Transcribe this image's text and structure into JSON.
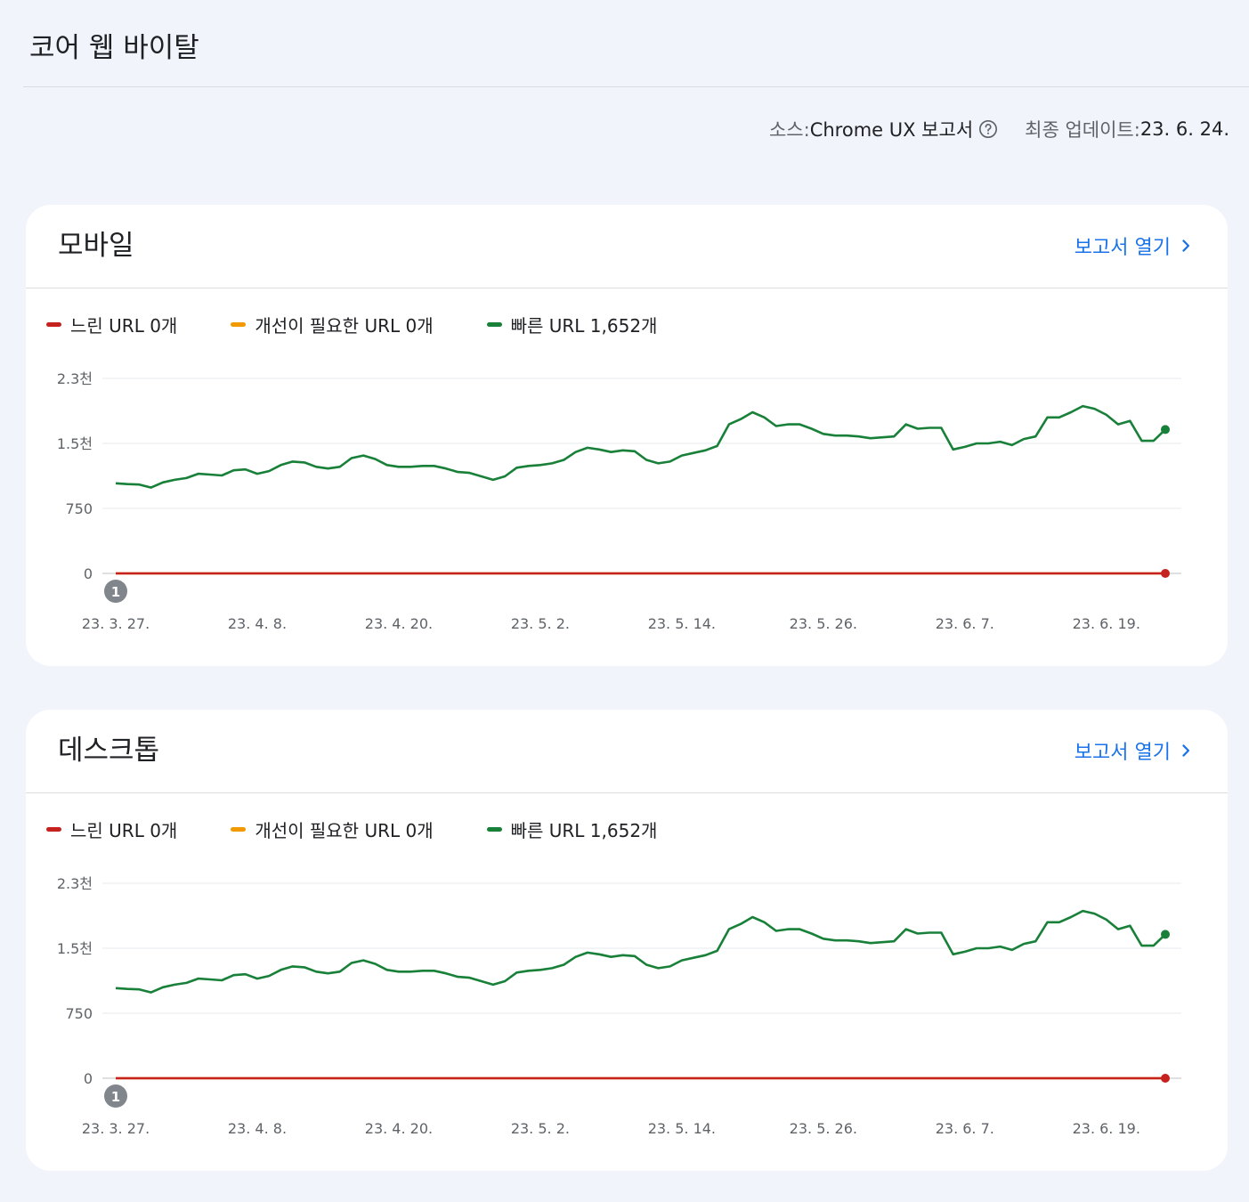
{
  "page": {
    "title": "코어 웹 바이탈",
    "source_label": "소스: ",
    "source_value": "Chrome UX 보고서",
    "updated_label": "최종 업데이트: ",
    "updated_value": "23. 6. 24."
  },
  "colors": {
    "slow": "#c5221f",
    "needs_improvement": "#f29900",
    "fast": "#188038",
    "link": "#1a73e8"
  },
  "cards": [
    {
      "title": "모바일",
      "open_report": "보고서 열기",
      "legend": [
        {
          "label": "느린 URL 0개"
        },
        {
          "label": "개선이 필요한 URL 0개"
        },
        {
          "label": "빠른 URL 1,652개"
        }
      ],
      "annotation": "1"
    },
    {
      "title": "데스크톱",
      "open_report": "보고서 열기",
      "legend": [
        {
          "label": "느린 URL 0개"
        },
        {
          "label": "개선이 필요한 URL 0개"
        },
        {
          "label": "빠른 URL 1,652개"
        }
      ],
      "annotation": "1"
    }
  ],
  "chart_data": [
    {
      "type": "line",
      "x_tick_labels": [
        "23. 3. 27.",
        "23. 4. 8.",
        "23. 4. 20.",
        "23. 5. 2.",
        "23. 5. 14.",
        "23. 5. 26.",
        "23. 6. 7.",
        "23. 6. 19."
      ],
      "y_tick_labels": [
        "0",
        "750",
        "1.5천",
        "2.3천"
      ],
      "y_ticks": [
        0,
        750,
        1500,
        2250
      ],
      "ylim": [
        0,
        2250
      ],
      "grid": true,
      "legend_position": "top-left",
      "series": [
        {
          "name": "느린 URL",
          "color": "#c5221f",
          "values": [
            0,
            0,
            0,
            0,
            0,
            0,
            0,
            0,
            0,
            0,
            0,
            0,
            0,
            0,
            0,
            0,
            0,
            0,
            0,
            0,
            0,
            0,
            0,
            0,
            0,
            0,
            0,
            0,
            0,
            0,
            0,
            0,
            0,
            0,
            0,
            0,
            0,
            0,
            0,
            0,
            0,
            0,
            0,
            0,
            0,
            0,
            0,
            0,
            0,
            0,
            0,
            0,
            0,
            0,
            0,
            0,
            0,
            0,
            0,
            0,
            0,
            0,
            0,
            0,
            0,
            0,
            0,
            0,
            0,
            0,
            0,
            0,
            0,
            0,
            0,
            0,
            0,
            0,
            0,
            0,
            0,
            0,
            0,
            0,
            0,
            0,
            0,
            0,
            0,
            0
          ]
        },
        {
          "name": "개선이 필요한 URL",
          "color": "#f29900",
          "values": [
            0,
            0,
            0,
            0,
            0,
            0,
            0,
            0,
            0,
            0,
            0,
            0,
            0,
            0,
            0,
            0,
            0,
            0,
            0,
            0,
            0,
            0,
            0,
            0,
            0,
            0,
            0,
            0,
            0,
            0,
            0,
            0,
            0,
            0,
            0,
            0,
            0,
            0,
            0,
            0,
            0,
            0,
            0,
            0,
            0,
            0,
            0,
            0,
            0,
            0,
            0,
            0,
            0,
            0,
            0,
            0,
            0,
            0,
            0,
            0,
            0,
            0,
            0,
            0,
            0,
            0,
            0,
            0,
            0,
            0,
            0,
            0,
            0,
            0,
            0,
            0,
            0,
            0,
            0,
            0,
            0,
            0,
            0,
            0,
            0,
            0,
            0,
            0,
            0,
            0
          ]
        },
        {
          "name": "빠른 URL",
          "color": "#188038",
          "values": [
            1040,
            1030,
            1025,
            990,
            1050,
            1080,
            1100,
            1150,
            1140,
            1130,
            1190,
            1200,
            1150,
            1180,
            1250,
            1290,
            1280,
            1230,
            1210,
            1230,
            1330,
            1360,
            1320,
            1250,
            1230,
            1230,
            1240,
            1240,
            1210,
            1170,
            1160,
            1120,
            1080,
            1120,
            1220,
            1240,
            1250,
            1270,
            1310,
            1400,
            1450,
            1430,
            1400,
            1420,
            1410,
            1310,
            1270,
            1290,
            1360,
            1390,
            1420,
            1470,
            1720,
            1780,
            1860,
            1800,
            1700,
            1720,
            1720,
            1670,
            1610,
            1590,
            1590,
            1580,
            1560,
            1570,
            1580,
            1720,
            1670,
            1680,
            1680,
            1430,
            1460,
            1500,
            1500,
            1520,
            1480,
            1550,
            1580,
            1800,
            1800,
            1860,
            1930,
            1900,
            1830,
            1720,
            1760,
            1530,
            1530,
            1660
          ]
        }
      ]
    },
    {
      "type": "line",
      "x_tick_labels": [
        "23. 3. 27.",
        "23. 4. 8.",
        "23. 4. 20.",
        "23. 5. 2.",
        "23. 5. 14.",
        "23. 5. 26.",
        "23. 6. 7.",
        "23. 6. 19."
      ],
      "y_tick_labels": [
        "0",
        "750",
        "1.5천",
        "2.3천"
      ],
      "y_ticks": [
        0,
        750,
        1500,
        2250
      ],
      "ylim": [
        0,
        2250
      ],
      "grid": true,
      "legend_position": "top-left",
      "series": [
        {
          "name": "느린 URL",
          "color": "#c5221f",
          "values": [
            0,
            0,
            0,
            0,
            0,
            0,
            0,
            0,
            0,
            0,
            0,
            0,
            0,
            0,
            0,
            0,
            0,
            0,
            0,
            0,
            0,
            0,
            0,
            0,
            0,
            0,
            0,
            0,
            0,
            0,
            0,
            0,
            0,
            0,
            0,
            0,
            0,
            0,
            0,
            0,
            0,
            0,
            0,
            0,
            0,
            0,
            0,
            0,
            0,
            0,
            0,
            0,
            0,
            0,
            0,
            0,
            0,
            0,
            0,
            0,
            0,
            0,
            0,
            0,
            0,
            0,
            0,
            0,
            0,
            0,
            0,
            0,
            0,
            0,
            0,
            0,
            0,
            0,
            0,
            0,
            0,
            0,
            0,
            0,
            0,
            0,
            0,
            0,
            0,
            0
          ]
        },
        {
          "name": "개선이 필요한 URL",
          "color": "#f29900",
          "values": [
            0,
            0,
            0,
            0,
            0,
            0,
            0,
            0,
            0,
            0,
            0,
            0,
            0,
            0,
            0,
            0,
            0,
            0,
            0,
            0,
            0,
            0,
            0,
            0,
            0,
            0,
            0,
            0,
            0,
            0,
            0,
            0,
            0,
            0,
            0,
            0,
            0,
            0,
            0,
            0,
            0,
            0,
            0,
            0,
            0,
            0,
            0,
            0,
            0,
            0,
            0,
            0,
            0,
            0,
            0,
            0,
            0,
            0,
            0,
            0,
            0,
            0,
            0,
            0,
            0,
            0,
            0,
            0,
            0,
            0,
            0,
            0,
            0,
            0,
            0,
            0,
            0,
            0,
            0,
            0,
            0,
            0,
            0,
            0,
            0,
            0,
            0,
            0,
            0,
            0
          ]
        },
        {
          "name": "빠른 URL",
          "color": "#188038",
          "values": [
            1040,
            1030,
            1025,
            990,
            1050,
            1080,
            1100,
            1150,
            1140,
            1130,
            1190,
            1200,
            1150,
            1180,
            1250,
            1290,
            1280,
            1230,
            1210,
            1230,
            1330,
            1360,
            1320,
            1250,
            1230,
            1230,
            1240,
            1240,
            1210,
            1170,
            1160,
            1120,
            1080,
            1120,
            1220,
            1240,
            1250,
            1270,
            1310,
            1400,
            1450,
            1430,
            1400,
            1420,
            1410,
            1310,
            1270,
            1290,
            1360,
            1390,
            1420,
            1470,
            1720,
            1780,
            1860,
            1800,
            1700,
            1720,
            1720,
            1670,
            1610,
            1590,
            1590,
            1580,
            1560,
            1570,
            1580,
            1720,
            1670,
            1680,
            1680,
            1430,
            1460,
            1500,
            1500,
            1520,
            1480,
            1550,
            1580,
            1800,
            1800,
            1860,
            1930,
            1900,
            1830,
            1720,
            1760,
            1530,
            1530,
            1660
          ]
        }
      ]
    }
  ]
}
